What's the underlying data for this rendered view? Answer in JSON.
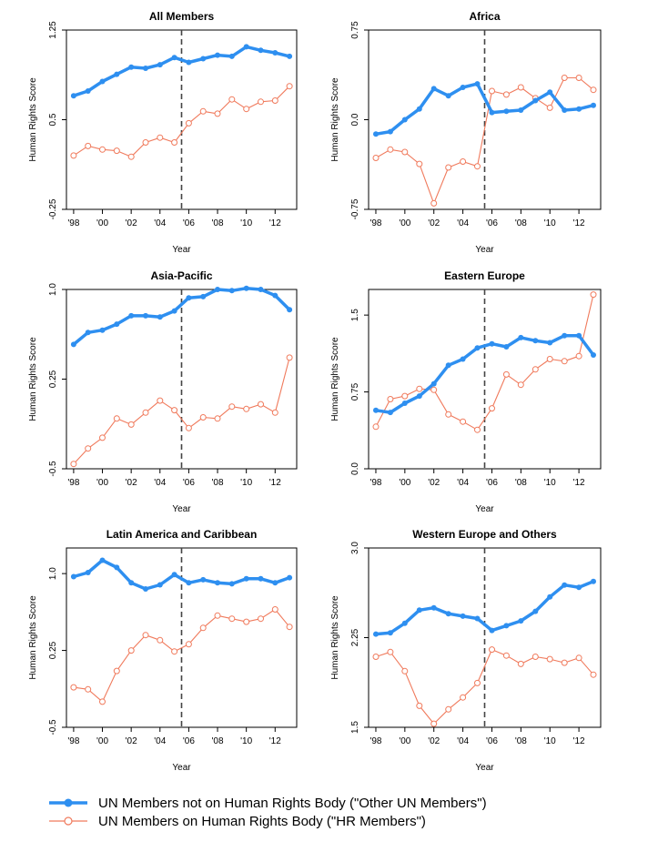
{
  "colors": {
    "other": "#2E8FF0",
    "hr": "#F07A5C",
    "axis": "#000000",
    "divider": "#444444"
  },
  "legend": {
    "other_label": "UN Members not on Human Rights Body (\"Other UN Members\")",
    "hr_label": "UN Members on Human Rights Body (\"HR Members\")"
  },
  "chart_data": [
    {
      "type": "line",
      "title": "All Members",
      "xlabel": "Year",
      "ylabel": "Human Rights Score",
      "x": [
        1998,
        1999,
        2000,
        2001,
        2002,
        2003,
        2004,
        2005,
        2006,
        2007,
        2008,
        2009,
        2010,
        2011,
        2012,
        2013
      ],
      "xlim": [
        1997.5,
        2013.5
      ],
      "xticks": [
        1998,
        2000,
        2002,
        2004,
        2006,
        2008,
        2010,
        2012
      ],
      "xtick_labels": [
        "'98",
        "'00",
        "'02",
        "'04",
        "'06",
        "'08",
        "'10",
        "'12"
      ],
      "ylim": [
        -0.25,
        1.25
      ],
      "yticks": [
        -0.25,
        0.5,
        1.25
      ],
      "ytick_labels": [
        "-0.25",
        "0.5",
        "1.25"
      ],
      "divider_x": 2005.5,
      "series": [
        {
          "name": "Other UN Members",
          "values": [
            0.7,
            0.74,
            0.82,
            0.88,
            0.94,
            0.93,
            0.96,
            1.02,
            0.98,
            1.01,
            1.04,
            1.03,
            1.11,
            1.08,
            1.06,
            1.03
          ]
        },
        {
          "name": "HR Members",
          "values": [
            0.2,
            0.28,
            0.25,
            0.24,
            0.19,
            0.31,
            0.35,
            0.31,
            0.47,
            0.57,
            0.55,
            0.67,
            0.59,
            0.65,
            0.66,
            0.78
          ]
        }
      ]
    },
    {
      "type": "line",
      "title": "Africa",
      "xlabel": "Year",
      "ylabel": "Human Rights Score",
      "x": [
        1998,
        1999,
        2000,
        2001,
        2002,
        2003,
        2004,
        2005,
        2006,
        2007,
        2008,
        2009,
        2010,
        2011,
        2012,
        2013
      ],
      "xlim": [
        1997.5,
        2013.5
      ],
      "xticks": [
        1998,
        2000,
        2002,
        2004,
        2006,
        2008,
        2010,
        2012
      ],
      "xtick_labels": [
        "'98",
        "'00",
        "'02",
        "'04",
        "'06",
        "'08",
        "'10",
        "'12"
      ],
      "ylim": [
        -0.75,
        0.75
      ],
      "yticks": [
        -0.75,
        0.0,
        0.75
      ],
      "ytick_labels": [
        "-0.75",
        "0.0",
        "0.75"
      ],
      "divider_x": 2005.5,
      "series": [
        {
          "name": "Other UN Members",
          "values": [
            -0.12,
            -0.1,
            0.0,
            0.09,
            0.26,
            0.2,
            0.27,
            0.3,
            0.06,
            0.07,
            0.08,
            0.16,
            0.23,
            0.08,
            0.09,
            0.12
          ]
        },
        {
          "name": "HR Members",
          "values": [
            -0.32,
            -0.25,
            -0.27,
            -0.37,
            -0.7,
            -0.4,
            -0.35,
            -0.39,
            0.24,
            0.21,
            0.27,
            0.18,
            0.1,
            0.35,
            0.35,
            0.25
          ]
        }
      ]
    },
    {
      "type": "line",
      "title": "Asia-Pacific",
      "xlabel": "Year",
      "ylabel": "Human Rights Score",
      "x": [
        1998,
        1999,
        2000,
        2001,
        2002,
        2003,
        2004,
        2005,
        2006,
        2007,
        2008,
        2009,
        2010,
        2011,
        2012,
        2013
      ],
      "xlim": [
        1997.5,
        2013.5
      ],
      "xticks": [
        1998,
        2000,
        2002,
        2004,
        2006,
        2008,
        2010,
        2012
      ],
      "xtick_labels": [
        "'98",
        "'00",
        "'02",
        "'04",
        "'06",
        "'08",
        "'10",
        "'12"
      ],
      "ylim": [
        -0.5,
        1.0
      ],
      "yticks": [
        -0.5,
        0.25,
        1.0
      ],
      "ytick_labels": [
        "-0.5",
        "0.25",
        "1.0"
      ],
      "divider_x": 2005.5,
      "series": [
        {
          "name": "Other UN Members",
          "values": [
            0.54,
            0.64,
            0.66,
            0.71,
            0.78,
            0.78,
            0.77,
            0.82,
            0.93,
            0.94,
            1.0,
            0.99,
            1.01,
            1.0,
            0.95,
            0.83
          ]
        },
        {
          "name": "HR Members",
          "values": [
            -0.46,
            -0.33,
            -0.24,
            -0.08,
            -0.13,
            -0.03,
            0.07,
            -0.01,
            -0.16,
            -0.07,
            -0.08,
            0.02,
            0.0,
            0.04,
            -0.03,
            0.43
          ]
        }
      ]
    },
    {
      "type": "line",
      "title": "Eastern Europe",
      "xlabel": "Year",
      "ylabel": "Human Rights Score",
      "x": [
        1998,
        1999,
        2000,
        2001,
        2002,
        2003,
        2004,
        2005,
        2006,
        2007,
        2008,
        2009,
        2010,
        2011,
        2012,
        2013
      ],
      "xlim": [
        1997.5,
        2013.5
      ],
      "xticks": [
        1998,
        2000,
        2002,
        2004,
        2006,
        2008,
        2010,
        2012
      ],
      "xtick_labels": [
        "'98",
        "'00",
        "'02",
        "'04",
        "'06",
        "'08",
        "'10",
        "'12"
      ],
      "ylim": [
        0.0,
        1.75
      ],
      "yticks": [
        0.0,
        0.75,
        1.5
      ],
      "ytick_labels": [
        "0.0",
        "0.75",
        "1.5"
      ],
      "divider_x": 2005.5,
      "series": [
        {
          "name": "Other UN Members",
          "values": [
            0.57,
            0.55,
            0.64,
            0.71,
            0.83,
            1.01,
            1.07,
            1.18,
            1.22,
            1.19,
            1.28,
            1.25,
            1.23,
            1.3,
            1.3,
            1.11
          ]
        },
        {
          "name": "HR Members",
          "values": [
            0.41,
            0.68,
            0.71,
            0.78,
            0.77,
            0.53,
            0.46,
            0.38,
            0.59,
            0.92,
            0.82,
            0.97,
            1.07,
            1.05,
            1.1,
            1.7
          ]
        }
      ]
    },
    {
      "type": "line",
      "title": "Latin America and Caribbean",
      "xlabel": "Year",
      "ylabel": "Human Rights Score",
      "x": [
        1998,
        1999,
        2000,
        2001,
        2002,
        2003,
        2004,
        2005,
        2006,
        2007,
        2008,
        2009,
        2010,
        2011,
        2012,
        2013
      ],
      "xlim": [
        1997.5,
        2013.5
      ],
      "xticks": [
        1998,
        2000,
        2002,
        2004,
        2006,
        2008,
        2010,
        2012
      ],
      "xtick_labels": [
        "'98",
        "'00",
        "'02",
        "'04",
        "'06",
        "'08",
        "'10",
        "'12"
      ],
      "ylim": [
        -0.5,
        1.25
      ],
      "yticks": [
        -0.5,
        0.25,
        1.0
      ],
      "ytick_labels": [
        "-0.5",
        "0.25",
        "1.0"
      ],
      "divider_x": 2005.5,
      "series": [
        {
          "name": "Other UN Members",
          "values": [
            0.97,
            1.01,
            1.13,
            1.06,
            0.91,
            0.85,
            0.89,
            0.99,
            0.91,
            0.94,
            0.91,
            0.9,
            0.95,
            0.95,
            0.91,
            0.96
          ]
        },
        {
          "name": "HR Members",
          "values": [
            -0.11,
            -0.13,
            -0.25,
            0.05,
            0.25,
            0.4,
            0.35,
            0.24,
            0.31,
            0.47,
            0.59,
            0.56,
            0.53,
            0.56,
            0.65,
            0.48
          ]
        }
      ]
    },
    {
      "type": "line",
      "title": "Western Europe and Others",
      "xlabel": "Year",
      "ylabel": "Human Rights Score",
      "x": [
        1998,
        1999,
        2000,
        2001,
        2002,
        2003,
        2004,
        2005,
        2006,
        2007,
        2008,
        2009,
        2010,
        2011,
        2012,
        2013
      ],
      "xlim": [
        1997.5,
        2013.5
      ],
      "xticks": [
        1998,
        2000,
        2002,
        2004,
        2006,
        2008,
        2010,
        2012
      ],
      "xtick_labels": [
        "'98",
        "'00",
        "'02",
        "'04",
        "'06",
        "'08",
        "'10",
        "'12"
      ],
      "ylim": [
        1.5,
        3.0
      ],
      "yticks": [
        1.5,
        2.25,
        3.0
      ],
      "ytick_labels": [
        "1.5",
        "2.25",
        "3.0"
      ],
      "divider_x": 2005.5,
      "series": [
        {
          "name": "Other UN Members",
          "values": [
            2.28,
            2.29,
            2.37,
            2.48,
            2.5,
            2.45,
            2.43,
            2.41,
            2.31,
            2.35,
            2.39,
            2.47,
            2.59,
            2.69,
            2.67,
            2.72
          ]
        },
        {
          "name": "HR Members",
          "values": [
            2.09,
            2.13,
            1.97,
            1.68,
            1.53,
            1.65,
            1.75,
            1.87,
            2.15,
            2.1,
            2.03,
            2.09,
            2.07,
            2.04,
            2.08,
            1.94
          ]
        }
      ]
    }
  ]
}
